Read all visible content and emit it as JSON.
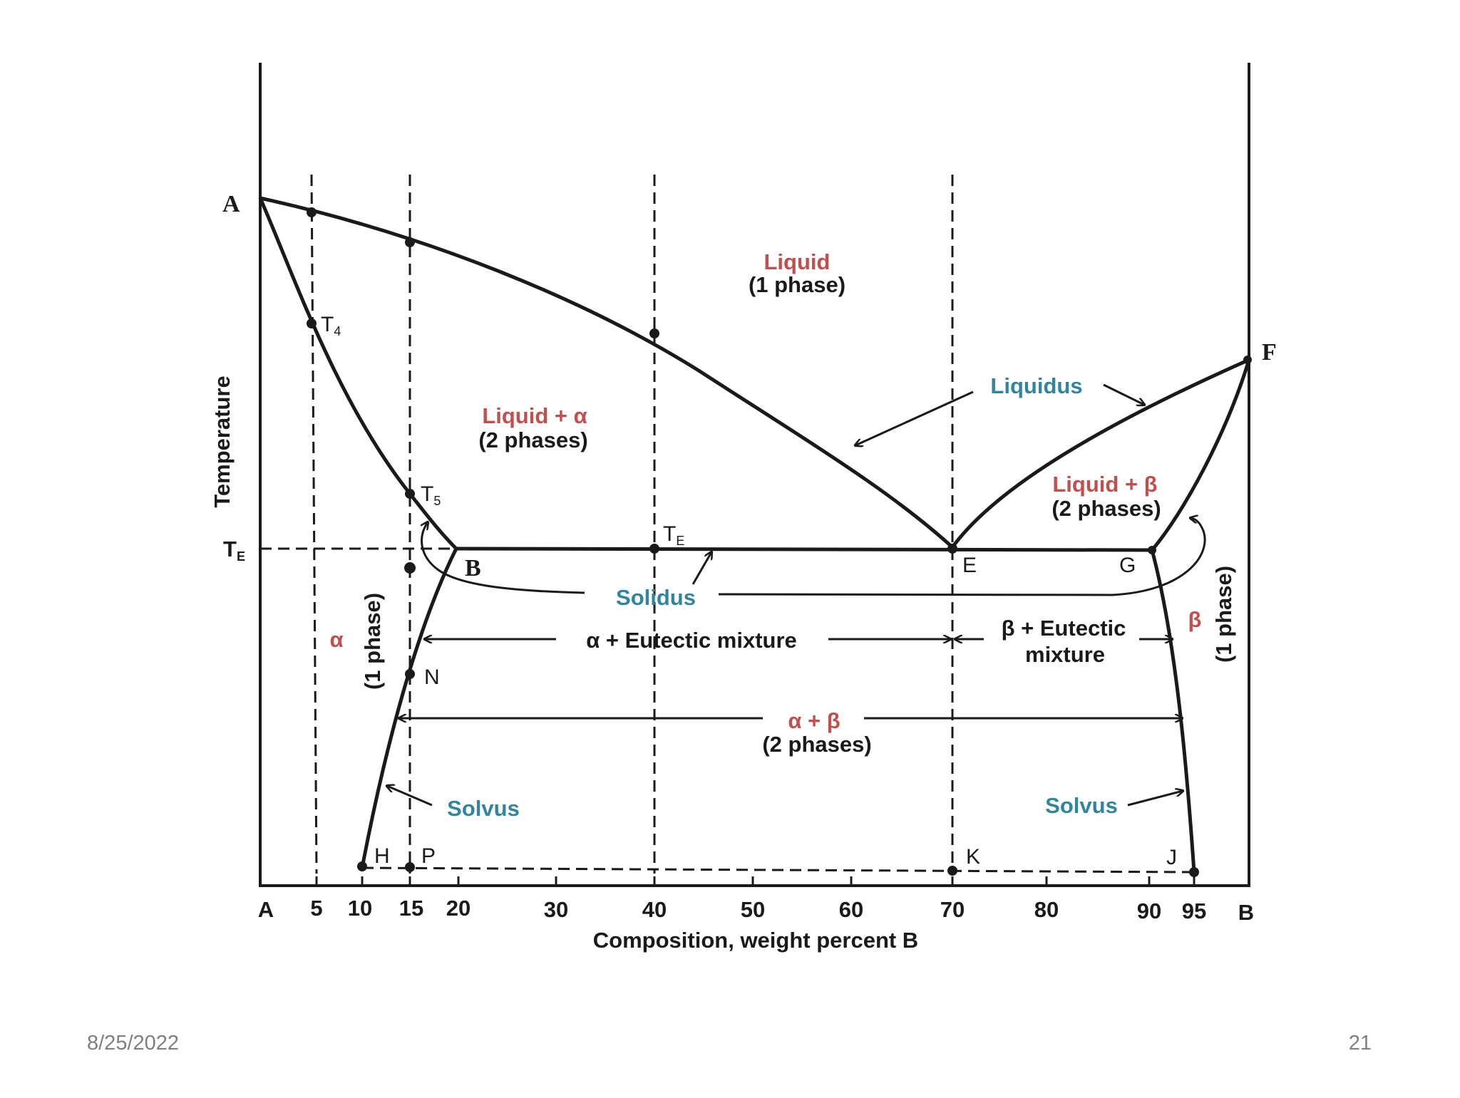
{
  "slide": {
    "footer_date": "8/25/2022",
    "slide_number": "21"
  },
  "diagram": {
    "y_axis_label": "Temperature",
    "x_axis_label": "Composition, weight percent B",
    "x_ticks": [
      "A",
      "5",
      "10",
      "15",
      "20",
      "30",
      "40",
      "50",
      "60",
      "70",
      "80",
      "90",
      "95",
      "B"
    ],
    "te_label": "TE",
    "point_labels": {
      "A": "A",
      "F": "F",
      "T4": "T4",
      "T5": "T5",
      "TE_mid": "TE",
      "B": "B",
      "E": "E",
      "G": "G",
      "N": "N",
      "H": "H",
      "P": "P",
      "K": "K",
      "J": "J"
    },
    "regions": {
      "liquid": "Liquid",
      "liquid_sub": "(1 phase)",
      "liquid_alpha": "Liquid + α",
      "liquid_alpha_sub": "(2 phases)",
      "liquid_beta": "Liquid + β",
      "liquid_beta_sub": "(2 phases)",
      "alpha": "α",
      "alpha_sub": "(1 phase)",
      "beta": "β",
      "beta_sub": "(1 phase)",
      "alpha_eutectic": "α + Eutectic mixture",
      "beta_eutectic_1": "β + Eutectic",
      "beta_eutectic_2": "mixture",
      "alpha_beta": "α + β",
      "alpha_beta_sub": "(2 phases)"
    },
    "curves": {
      "liquidus": "Liquidus",
      "solidus": "Solidus",
      "solvus_left": "Solvus",
      "solvus_right": "Solvus"
    },
    "colors": {
      "region_label": "#c0504d",
      "curve_label": "#31859c",
      "line": "#1a1a1a"
    }
  }
}
